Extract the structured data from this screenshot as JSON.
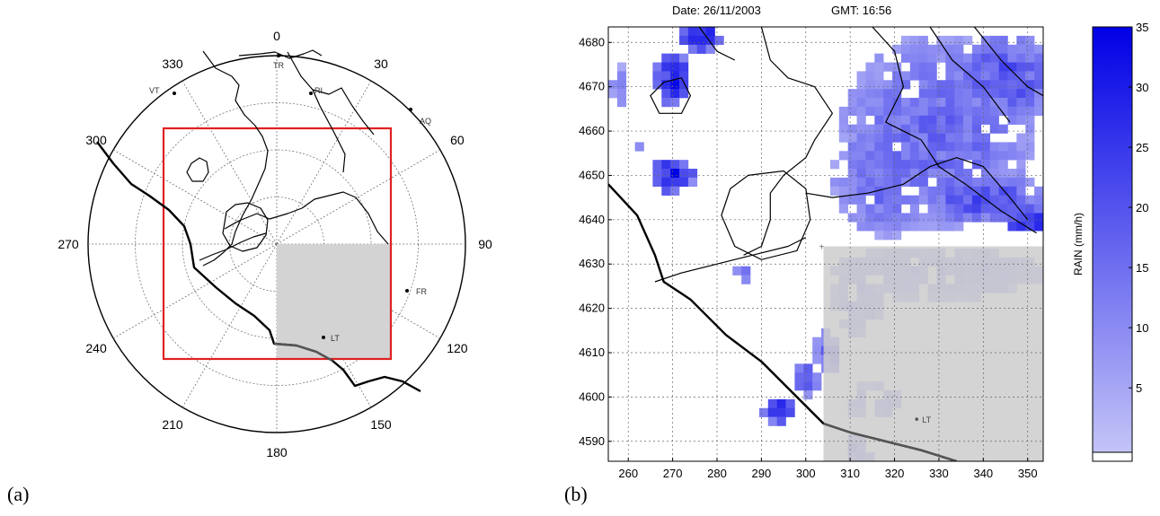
{
  "panel_a": {
    "label": "(a)",
    "azimuth_labels": [
      {
        "deg": 0,
        "text": "0"
      },
      {
        "deg": 30,
        "text": "30"
      },
      {
        "deg": 60,
        "text": "60"
      },
      {
        "deg": 90,
        "text": "90"
      },
      {
        "deg": 120,
        "text": "120"
      },
      {
        "deg": 150,
        "text": "150"
      },
      {
        "deg": 180,
        "text": "180"
      },
      {
        "deg": 210,
        "text": "210"
      },
      {
        "deg": 240,
        "text": "240"
      },
      {
        "deg": 270,
        "text": "270"
      },
      {
        "deg": 300,
        "text": "300"
      },
      {
        "deg": 330,
        "text": "330"
      }
    ],
    "cities": [
      {
        "text": "TR"
      },
      {
        "text": "RI"
      },
      {
        "text": "VT"
      },
      {
        "text": "AQ"
      },
      {
        "text": "FR"
      },
      {
        "text": "LT"
      }
    ],
    "colors": {
      "box": "#e02020",
      "shade": "#d3d3d3",
      "coast": "#000000"
    }
  },
  "panel_b": {
    "label": "(b)",
    "date_label": "Date:",
    "date_value": "26/11/2003",
    "gmt_label": "GMT:",
    "gmt_value": "16:56",
    "x_ticks": [
      "260",
      "270",
      "280",
      "290",
      "300",
      "310",
      "320",
      "330",
      "340",
      "350"
    ],
    "y_ticks": [
      "4680",
      "4670",
      "4660",
      "4650",
      "4640",
      "4630",
      "4620",
      "4610",
      "4600",
      "4590"
    ],
    "city": "LT",
    "colorbar": {
      "label": "RAIN  (mm/h)",
      "ticks": [
        "35",
        "30",
        "25",
        "20",
        "15",
        "10",
        "5"
      ],
      "min_color": "#c8c8f8",
      "max_color": "#0000e6"
    }
  }
}
